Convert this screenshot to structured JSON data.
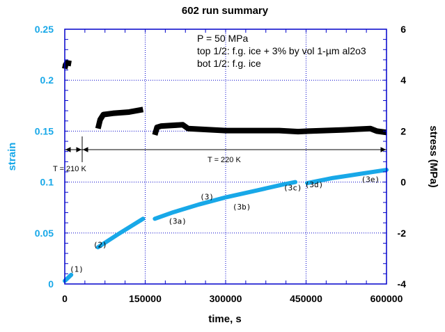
{
  "chart_data": {
    "type": "line",
    "title": "602 run summary",
    "xlabel": "time, s",
    "ylabel_left": "strain",
    "ylabel_right": "stress (MPa)",
    "xlim": [
      0,
      600000
    ],
    "ylim_left": [
      0,
      0.25
    ],
    "ylim_right": [
      -4,
      6
    ],
    "x_ticks": [
      "0",
      "150000",
      "300000",
      "450000",
      "600000"
    ],
    "y_ticks_left": [
      "0",
      "0.05",
      "0.1",
      "0.15",
      "0.2",
      "0.25"
    ],
    "y_ticks_right": [
      "-4",
      "-2",
      "0",
      "2",
      "4",
      "6"
    ],
    "grid": true,
    "colors": {
      "strain": "#18a8e8",
      "stress": "#000000",
      "axis": "#0000cc"
    },
    "annotation_lines": [
      "P = 50 MPa",
      "top 1/2: f.g. ice + 3% by vol 1-µm al2o3",
      "bot 1/2: f.g. ice"
    ],
    "temperature_labels": [
      "T = 210 K",
      "T = 220 K"
    ],
    "segment_labels": [
      {
        "text": "(1)",
        "x": 22000,
        "strain": 0.012
      },
      {
        "text": "(2)",
        "x": 66000,
        "strain": 0.036
      },
      {
        "text": "(3a)",
        "x": 210000,
        "strain": 0.059
      },
      {
        "text": "(3)",
        "x": 265000,
        "strain": 0.083
      },
      {
        "text": "(3b)",
        "x": 330000,
        "strain": 0.073
      },
      {
        "text": "(3c)",
        "x": 425000,
        "strain": 0.092
      },
      {
        "text": "(3d)",
        "x": 465000,
        "strain": 0.095
      },
      {
        "text": "(3e)",
        "x": 570000,
        "strain": 0.1
      }
    ],
    "series": [
      {
        "axis": "left",
        "segments": [
          [
            [
              0,
              0.003
            ],
            [
              4000,
              0.005
            ],
            [
              12000,
              0.009
            ]
          ],
          [
            [
              62000,
              0.036
            ],
            [
              100000,
              0.049
            ],
            [
              146000,
              0.064
            ]
          ],
          [
            [
              168000,
              0.064
            ],
            [
              200000,
              0.07
            ],
            [
              250000,
              0.078
            ],
            [
              300000,
              0.085
            ],
            [
              360000,
              0.092
            ],
            [
              410000,
              0.098
            ],
            [
              430000,
              0.1
            ]
          ],
          [
            [
              452000,
              0.099
            ],
            [
              500000,
              0.104
            ],
            [
              550000,
              0.108
            ],
            [
              600000,
              0.112
            ]
          ]
        ]
      },
      {
        "axis": "right",
        "segments": [
          [
            [
              0,
              4.45
            ],
            [
              1500,
              4.6
            ],
            [
              4000,
              4.68
            ],
            [
              12000,
              4.65
            ]
          ],
          [
            [
              62000,
              2.1
            ],
            [
              66000,
              2.45
            ],
            [
              72000,
              2.65
            ],
            [
              90000,
              2.7
            ],
            [
              120000,
              2.75
            ],
            [
              146000,
              2.85
            ]
          ],
          [
            [
              168000,
              1.85
            ],
            [
              172000,
              2.15
            ],
            [
              180000,
              2.2
            ],
            [
              220000,
              2.25
            ],
            [
              230000,
              2.1
            ],
            [
              300000,
              2.02
            ],
            [
              400000,
              2.02
            ],
            [
              435000,
              1.98
            ],
            [
              455000,
              2.0
            ],
            [
              520000,
              2.05
            ],
            [
              570000,
              2.1
            ],
            [
              582000,
              2.0
            ],
            [
              600000,
              1.95
            ]
          ]
        ]
      }
    ]
  }
}
